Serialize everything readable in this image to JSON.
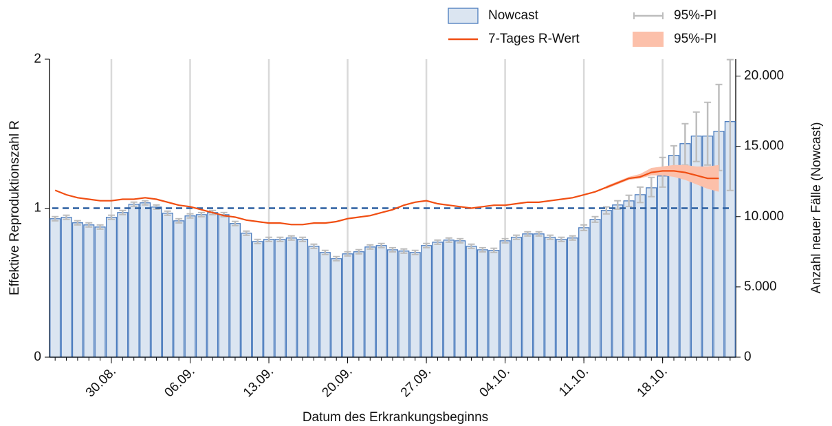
{
  "chart_data": {
    "type": "bar",
    "x_label": "Datum des Erkrankungsbeginns",
    "y_label": "Effektive Reproduktionszahl R",
    "y2_label": "Anzahl neuer Fälle (Nowcast)",
    "categories": [
      null,
      null,
      null,
      null,
      null,
      "30.08.",
      null,
      null,
      null,
      null,
      null,
      null,
      "06.09.",
      null,
      null,
      null,
      null,
      null,
      null,
      "13.09.",
      null,
      null,
      null,
      null,
      null,
      null,
      "20.09.",
      null,
      null,
      null,
      null,
      null,
      null,
      "27.09.",
      null,
      null,
      null,
      null,
      null,
      null,
      "04.10.",
      null,
      null,
      null,
      null,
      null,
      null,
      "11.10.",
      null,
      null,
      null,
      null,
      null,
      null,
      "18.10.",
      null,
      null,
      null,
      null,
      null,
      null
    ],
    "ylim": [
      0,
      2
    ],
    "yticks": [
      0,
      1,
      2
    ],
    "y2lim": [
      0,
      21200
    ],
    "y2ticks": [
      0,
      {
        "value": 5000,
        "label": "5.000"
      },
      {
        "value": 10000,
        "label": "10.000"
      },
      {
        "value": 15000,
        "label": "15.000"
      },
      {
        "value": 20000,
        "label": "20.000"
      }
    ],
    "reference_line": 1,
    "reference_color": "#2a5ea0",
    "grid": true,
    "series": [
      {
        "name": "Nowcast",
        "type": "bar",
        "axis": "y2",
        "color": "#dbe5f1",
        "edge_color": "#4a7bbd",
        "error_name": "95%-PI",
        "error_color": "#bdbdbd",
        "values": [
          9850,
          9950,
          9560,
          9410,
          9260,
          9950,
          10290,
          10880,
          10980,
          10680,
          10240,
          9700,
          10050,
          10140,
          10290,
          10140,
          9510,
          8820,
          8230,
          8380,
          8380,
          8480,
          8380,
          7890,
          7450,
          7010,
          7350,
          7500,
          7840,
          7940,
          7640,
          7550,
          7450,
          7940,
          8180,
          8330,
          8280,
          7890,
          7640,
          7600,
          8280,
          8530,
          8770,
          8770,
          8530,
          8380,
          8480,
          9210,
          9800,
          10440,
          10830,
          11120,
          11560,
          12050,
          12890,
          14360,
          15190,
          15730,
          15730,
          16070,
          16760
        ],
        "pi_low": [
          9700,
          9800,
          9410,
          9260,
          9110,
          9800,
          10140,
          10730,
          10830,
          10530,
          10090,
          9550,
          9900,
          9990,
          10140,
          9990,
          9360,
          8670,
          8080,
          8230,
          8230,
          8330,
          8230,
          7740,
          7300,
          6860,
          7200,
          7350,
          7690,
          7790,
          7490,
          7400,
          7300,
          7790,
          8030,
          8180,
          8130,
          7740,
          7490,
          7450,
          8130,
          8380,
          8620,
          8620,
          8380,
          8230,
          8330,
          9010,
          9600,
          10190,
          10530,
          10720,
          11000,
          11420,
          12100,
          13180,
          13670,
          13920,
          13670,
          13280,
          11860
        ],
        "pi_high": [
          10000,
          10100,
          9710,
          9560,
          9410,
          10100,
          10440,
          11030,
          11130,
          10830,
          10390,
          9850,
          10200,
          10290,
          10440,
          10290,
          9660,
          8970,
          8380,
          8530,
          8530,
          8630,
          8530,
          8040,
          7600,
          7160,
          7500,
          7650,
          7990,
          8090,
          7790,
          7700,
          7600,
          8090,
          8330,
          8480,
          8430,
          8040,
          7790,
          7750,
          8430,
          8680,
          8920,
          8920,
          8680,
          8530,
          8630,
          9410,
          10000,
          10690,
          11130,
          11520,
          12100,
          12790,
          14210,
          15040,
          16610,
          17440,
          18130,
          19400,
          21170
        ]
      },
      {
        "name": "7-Tages R-Wert",
        "type": "line",
        "axis": "y",
        "color": "#f04e12",
        "band_name": "95%-PI",
        "band_color": "#fcc0aa",
        "values": [
          1.12,
          1.09,
          1.07,
          1.06,
          1.05,
          1.05,
          1.06,
          1.06,
          1.07,
          1.06,
          1.04,
          1.02,
          1.01,
          0.99,
          0.97,
          0.95,
          0.94,
          0.92,
          0.91,
          0.9,
          0.9,
          0.89,
          0.89,
          0.9,
          0.9,
          0.91,
          0.93,
          0.94,
          0.95,
          0.97,
          0.99,
          1.02,
          1.04,
          1.05,
          1.03,
          1.02,
          1.01,
          1.0,
          1.01,
          1.02,
          1.02,
          1.03,
          1.04,
          1.04,
          1.05,
          1.06,
          1.07,
          1.09,
          1.11,
          1.14,
          1.17,
          1.2,
          1.21,
          1.24,
          1.25,
          1.25,
          1.24,
          1.22,
          1.2,
          1.2,
          null
        ],
        "band_low": [
          null,
          null,
          null,
          null,
          null,
          null,
          null,
          null,
          null,
          null,
          null,
          null,
          null,
          null,
          null,
          null,
          null,
          null,
          null,
          null,
          null,
          null,
          null,
          null,
          null,
          null,
          null,
          null,
          null,
          null,
          null,
          null,
          null,
          null,
          null,
          null,
          null,
          null,
          null,
          null,
          null,
          null,
          null,
          null,
          null,
          null,
          null,
          null,
          null,
          1.13,
          1.16,
          1.19,
          1.2,
          1.22,
          1.22,
          1.21,
          1.19,
          1.16,
          1.13,
          1.11,
          null
        ],
        "band_high": [
          null,
          null,
          null,
          null,
          null,
          null,
          null,
          null,
          null,
          null,
          null,
          null,
          null,
          null,
          null,
          null,
          null,
          null,
          null,
          null,
          null,
          null,
          null,
          null,
          null,
          null,
          null,
          null,
          null,
          null,
          null,
          null,
          null,
          null,
          null,
          null,
          null,
          null,
          null,
          null,
          null,
          null,
          null,
          null,
          null,
          null,
          null,
          null,
          null,
          1.15,
          1.18,
          1.21,
          1.23,
          1.27,
          1.28,
          1.29,
          1.29,
          1.28,
          1.28,
          1.29,
          null
        ]
      }
    ]
  }
}
